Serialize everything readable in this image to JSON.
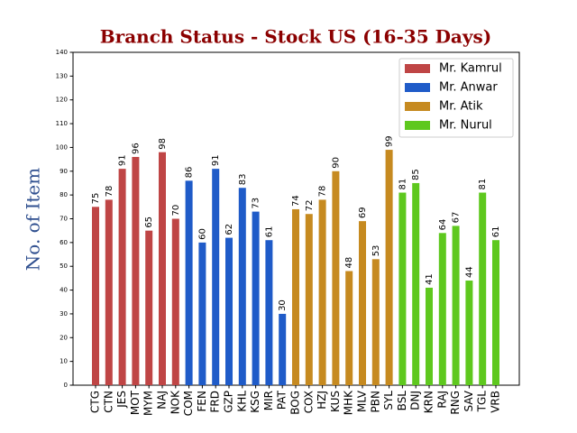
{
  "chart_data": {
    "type": "bar",
    "title": "Branch Status - Stock US (16-35 Days)",
    "ylabel": "No. of Item",
    "categories": [
      "CTG",
      "CTN",
      "JES",
      "MOT",
      "MYM",
      "NAJ",
      "NOK",
      "COM",
      "FEN",
      "FRD",
      "GZP",
      "KHL",
      "KSG",
      "MIR",
      "PAT",
      "BOG",
      "COX",
      "HZJ",
      "KUS",
      "MHK",
      "MLV",
      "PBN",
      "SYL",
      "BSL",
      "DNJ",
      "KRN",
      "RAJ",
      "RNG",
      "SAV",
      "TGL",
      "VRB"
    ],
    "series": [
      {
        "name": "Mr. Kamrul",
        "color": "#bf4545",
        "values": [
          75,
          78,
          91,
          96,
          65,
          98,
          70,
          null,
          null,
          null,
          null,
          null,
          null,
          null,
          null,
          null,
          null,
          null,
          null,
          null,
          null,
          null,
          null,
          null,
          null,
          null,
          null,
          null,
          null,
          null,
          null
        ]
      },
      {
        "name": "Mr. Anwar",
        "color": "#1f5bc8",
        "values": [
          null,
          null,
          null,
          null,
          null,
          null,
          null,
          86,
          60,
          91,
          62,
          83,
          73,
          61,
          30,
          null,
          null,
          null,
          null,
          null,
          null,
          null,
          null,
          null,
          null,
          null,
          null,
          null,
          null,
          null,
          null
        ]
      },
      {
        "name": "Mr. Atik",
        "color": "#c68a20",
        "values": [
          null,
          null,
          null,
          null,
          null,
          null,
          null,
          null,
          null,
          null,
          null,
          null,
          null,
          null,
          null,
          74,
          72,
          78,
          90,
          48,
          69,
          53,
          99,
          null,
          null,
          null,
          null,
          null,
          null,
          null,
          null
        ]
      },
      {
        "name": "Mr. Nurul",
        "color": "#5ec81e",
        "values": [
          null,
          null,
          null,
          null,
          null,
          null,
          null,
          null,
          null,
          null,
          null,
          null,
          null,
          null,
          null,
          null,
          null,
          null,
          null,
          null,
          null,
          null,
          null,
          81,
          85,
          41,
          64,
          67,
          44,
          81,
          61
        ]
      }
    ],
    "ylim": [
      0,
      140
    ],
    "yticks": [
      0,
      10,
      20,
      30,
      40,
      50,
      60,
      70,
      80,
      90,
      100,
      110,
      120,
      130,
      140
    ],
    "legend": "upper right"
  }
}
